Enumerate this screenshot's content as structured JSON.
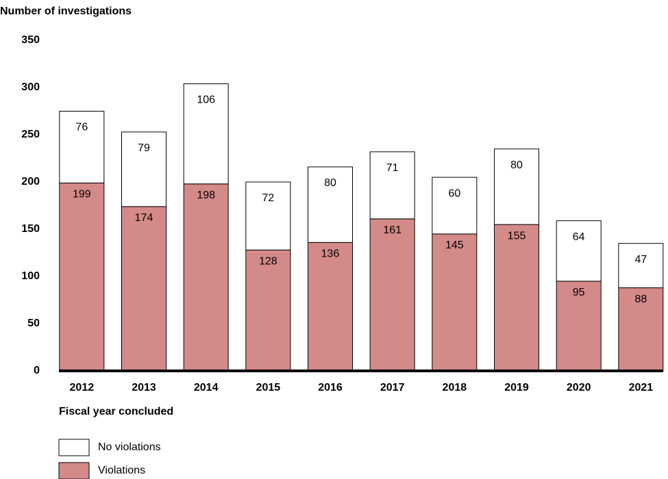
{
  "chart_data": {
    "type": "stacked_bar",
    "y_axis_title": "Number of investigations",
    "x_axis_title": "Fiscal year concluded",
    "categories": [
      "2012",
      "2013",
      "2014",
      "2015",
      "2016",
      "2017",
      "2018",
      "2019",
      "2020",
      "2021"
    ],
    "series": [
      {
        "name": "Violations",
        "color": "#d48a88",
        "values": [
          199,
          174,
          198,
          128,
          136,
          161,
          145,
          155,
          95,
          88
        ]
      },
      {
        "name": "No violations",
        "color": "#ffffff",
        "values": [
          76,
          79,
          106,
          72,
          80,
          71,
          60,
          80,
          64,
          47
        ]
      }
    ],
    "ylim": [
      0,
      350
    ],
    "yticks": [
      0,
      50,
      100,
      150,
      200,
      250,
      300,
      350
    ],
    "grid": false
  }
}
